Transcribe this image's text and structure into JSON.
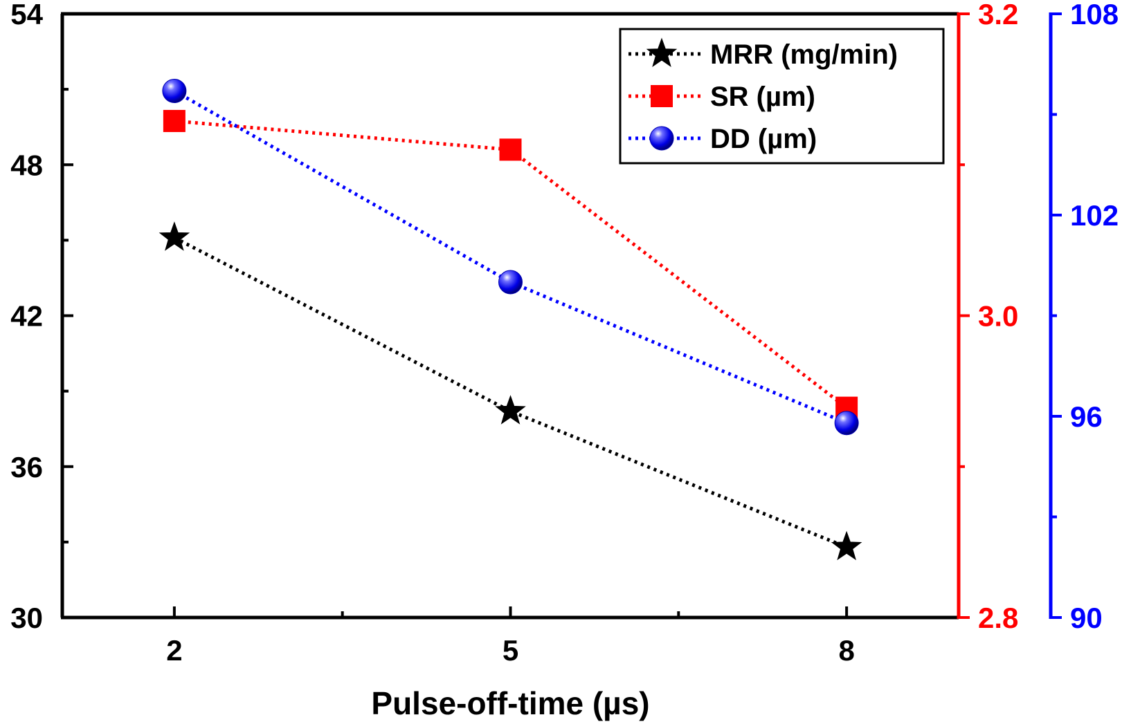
{
  "chart_data": {
    "type": "line",
    "title": "",
    "xlabel": "Pulse-off-time (µs)",
    "x": [
      2,
      5,
      8
    ],
    "x_ticks": [
      "2",
      "5",
      "8"
    ],
    "xlim": [
      1,
      9
    ],
    "grid": false,
    "legend_position": "top-right",
    "axes": {
      "left": {
        "ylim": [
          30,
          54
        ],
        "ticks": [
          "30",
          "36",
          "42",
          "48",
          "54"
        ],
        "color": "#000000"
      },
      "right1": {
        "ylim": [
          2.8,
          3.2
        ],
        "ticks": [
          "2.8",
          "3.0",
          "3.2"
        ],
        "color": "#ff0000"
      },
      "right2": {
        "ylim": [
          90,
          108
        ],
        "ticks": [
          "90",
          "96",
          "102",
          "108"
        ],
        "color": "#0000ff"
      }
    },
    "series": [
      {
        "name": "MRR (mg/min)",
        "axis": "left",
        "color": "#000000",
        "marker": "star",
        "values": [
          45.1,
          38.2,
          32.8
        ]
      },
      {
        "name": "SR (µm)",
        "axis": "right1",
        "color": "#ff0000",
        "marker": "square",
        "values": [
          3.129,
          3.11,
          2.939
        ]
      },
      {
        "name": "DD (µm)",
        "axis": "right2",
        "color": "#0000ff",
        "marker": "sphere",
        "values": [
          105.7,
          100.0,
          95.8
        ]
      }
    ]
  }
}
